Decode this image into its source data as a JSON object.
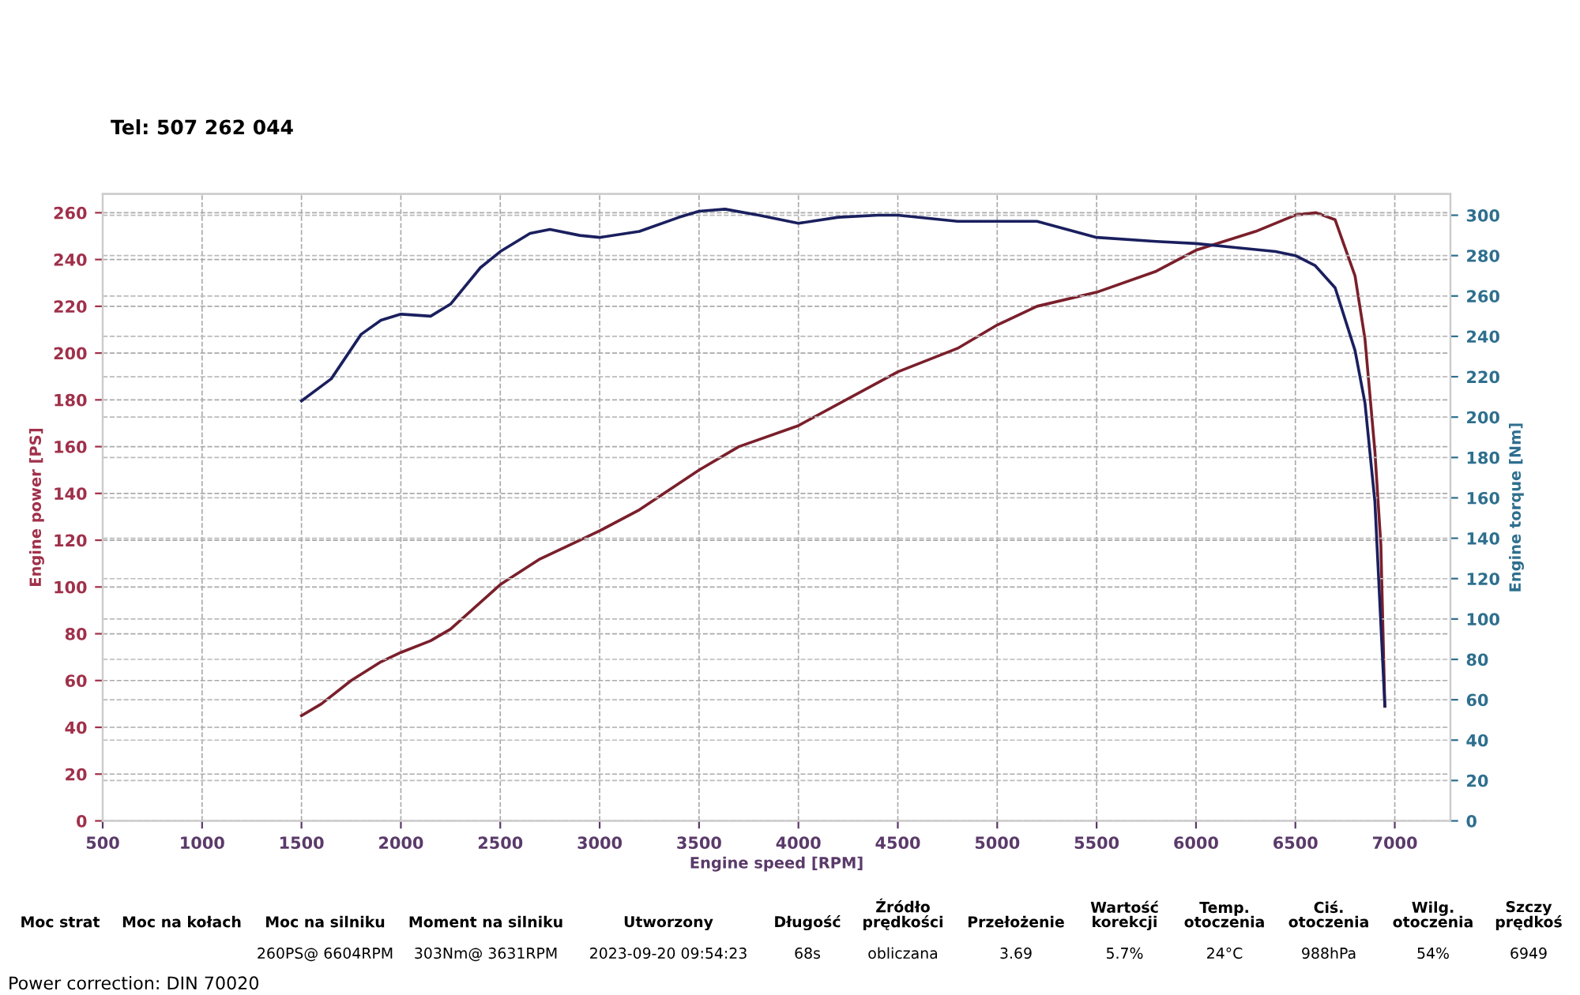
{
  "chart_data": {
    "type": "line",
    "xlabel": "Engine speed [RPM]",
    "ylabel": "Engine power [PS]",
    "y2label": "Engine torque [Nm]",
    "xlim": [
      500,
      7280
    ],
    "ylim": [
      0,
      268
    ],
    "y2lim": [
      0,
      310.5
    ],
    "xticks": [
      500,
      1000,
      1500,
      2000,
      2500,
      3000,
      3500,
      4000,
      4500,
      5000,
      5500,
      6000,
      6500,
      7000
    ],
    "yticks": [
      0,
      20,
      40,
      60,
      80,
      100,
      120,
      140,
      160,
      180,
      200,
      220,
      240,
      260
    ],
    "y2ticks": [
      0,
      20,
      40,
      60,
      80,
      100,
      120,
      140,
      160,
      180,
      200,
      220,
      240,
      260,
      280,
      300
    ],
    "grid": true,
    "line_style": "solid",
    "marker": "none",
    "series": [
      {
        "color": "#7a1f2b",
        "x": [
          1500,
          1600,
          1750,
          1900,
          2000,
          2150,
          2250,
          2500,
          2700,
          2900,
          3000,
          3200,
          3500,
          3700,
          4000,
          4500,
          4800,
          5000,
          5200,
          5500,
          5800,
          6000,
          6300,
          6500,
          6604,
          6700,
          6800,
          6850,
          6900,
          6930,
          6950
        ],
        "values": [
          45,
          50,
          60,
          68,
          72,
          77,
          82,
          101,
          112,
          120,
          124,
          133,
          150,
          160,
          169,
          192,
          202,
          212,
          220,
          226,
          235,
          244,
          252,
          259,
          260,
          257,
          233,
          206,
          158,
          118,
          49
        ]
      },
      {
        "color": "#1a1f5e",
        "axis": "y2",
        "x": [
          1500,
          1650,
          1800,
          1900,
          2000,
          2150,
          2250,
          2400,
          2500,
          2650,
          2750,
          2900,
          3000,
          3200,
          3400,
          3500,
          3631,
          3800,
          4000,
          4200,
          4400,
          4500,
          4800,
          5000,
          5200,
          5500,
          5800,
          6000,
          6200,
          6400,
          6500,
          6600,
          6700,
          6800,
          6850,
          6900,
          6950
        ],
        "values": [
          208,
          219,
          241,
          248,
          251,
          250,
          256,
          274,
          282,
          291,
          293,
          290,
          289,
          292,
          299,
          302,
          303,
          300,
          296,
          299,
          300,
          300,
          297,
          297,
          297,
          289,
          287,
          286,
          284,
          282,
          280,
          275,
          264,
          233,
          207,
          158,
          57
        ]
      }
    ],
    "annotations": [
      "Tel: 507 262 044",
      "Moc strat",
      "Moc na kołach",
      "Moc na silniku\n260PS@ 6604RPM",
      "Moment na silniku\n303Nm@ 3631RPM",
      "Utworzony\n2023-09-20 09:54:23",
      "Długość\n68s",
      "Źródło\nprędkości\nobliczana",
      "Przełożenie\n3.69",
      "Wartość\nkorekcji\n5.7%",
      "Temp.\notoczenia\n24°C",
      "Ciś.\notoczenia\n988hPa",
      "Wilg.\notoczenia\n54%",
      "Szczy\nprędkoś\n6949",
      "Power correction: DIN 70020"
    ]
  }
}
